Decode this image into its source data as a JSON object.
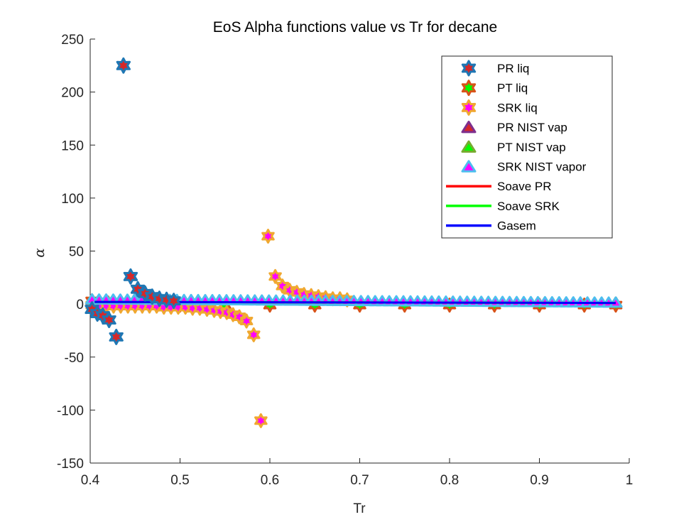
{
  "chart_data": {
    "type": "scatter",
    "title": "EoS Alpha functions value vs Tr for decane",
    "xlabel": "Tr",
    "ylabel": "α",
    "xlim": [
      0.4,
      1.0
    ],
    "ylim": [
      -150,
      250
    ],
    "xticks": [
      "0.4",
      "0.5",
      "0.6",
      "0.7",
      "0.8",
      "0.9",
      "1"
    ],
    "yticks": [
      "-150",
      "-100",
      "-50",
      "0",
      "50",
      "100",
      "150",
      "200",
      "250"
    ],
    "grid": false,
    "legend_position": "top-right",
    "series": [
      {
        "name": "PR liq",
        "marker": "hexagram",
        "edge_color": "#1f77b4",
        "face_color": "#d62728",
        "points": [
          [
            0.402,
            -5
          ],
          [
            0.408,
            -9
          ],
          [
            0.414,
            -11
          ],
          [
            0.421,
            -15
          ],
          [
            0.429,
            -31
          ],
          [
            0.437,
            225
          ],
          [
            0.445,
            26
          ],
          [
            0.453,
            14
          ],
          [
            0.461,
            10
          ],
          [
            0.469,
            7
          ],
          [
            0.477,
            5
          ],
          [
            0.485,
            4
          ],
          [
            0.493,
            3
          ]
        ]
      },
      {
        "name": "PT liq",
        "marker": "hexagram",
        "edge_color": "#d95319",
        "face_color": "#00ff00",
        "points": [
          [
            0.402,
            3
          ],
          [
            0.41,
            2
          ],
          [
            0.42,
            1
          ],
          [
            0.45,
            0
          ],
          [
            0.5,
            -1
          ],
          [
            0.55,
            -1
          ],
          [
            0.6,
            -1
          ],
          [
            0.65,
            -1
          ],
          [
            0.7,
            -1
          ],
          [
            0.75,
            -1
          ],
          [
            0.8,
            -1
          ],
          [
            0.85,
            -1
          ],
          [
            0.9,
            -1
          ],
          [
            0.95,
            -1
          ],
          [
            0.985,
            -1
          ]
        ]
      },
      {
        "name": "SRK liq",
        "marker": "hexagram",
        "edge_color": "#f0a830",
        "face_color": "#ff00ff",
        "points": [
          [
            0.402,
            -1
          ],
          [
            0.41,
            -2
          ],
          [
            0.418,
            -2
          ],
          [
            0.426,
            -2
          ],
          [
            0.434,
            -2
          ],
          [
            0.442,
            -2
          ],
          [
            0.45,
            -2
          ],
          [
            0.458,
            -2
          ],
          [
            0.466,
            -2
          ],
          [
            0.474,
            -2
          ],
          [
            0.482,
            -3
          ],
          [
            0.49,
            -3
          ],
          [
            0.498,
            -3
          ],
          [
            0.506,
            -3
          ],
          [
            0.514,
            -4
          ],
          [
            0.522,
            -4
          ],
          [
            0.53,
            -5
          ],
          [
            0.538,
            -6
          ],
          [
            0.545,
            -7
          ],
          [
            0.552,
            -8
          ],
          [
            0.559,
            -10
          ],
          [
            0.566,
            -12
          ],
          [
            0.574,
            -16
          ],
          [
            0.582,
            -29
          ],
          [
            0.59,
            -110
          ],
          [
            0.598,
            64
          ],
          [
            0.606,
            26
          ],
          [
            0.614,
            17
          ],
          [
            0.622,
            13
          ],
          [
            0.63,
            11
          ],
          [
            0.638,
            9
          ],
          [
            0.646,
            8
          ],
          [
            0.654,
            7
          ],
          [
            0.662,
            6
          ],
          [
            0.67,
            5
          ],
          [
            0.678,
            5
          ],
          [
            0.686,
            4
          ]
        ]
      },
      {
        "name": "PR NIST vap",
        "marker": "triangle",
        "edge_color": "#7e2f8e",
        "face_color": "#d62728",
        "points": [
          [
            0.402,
            4
          ],
          [
            0.985,
            1
          ]
        ]
      },
      {
        "name": "PT NIST vap",
        "marker": "triangle",
        "edge_color": "#77ac30",
        "face_color": "#00ff00",
        "points": [
          [
            0.402,
            4
          ],
          [
            0.985,
            1
          ]
        ]
      },
      {
        "name": "SRK NIST vapor",
        "marker": "triangle",
        "edge_color": "#4dbeee",
        "face_color": "#ff00ff",
        "points_x_range": [
          0.402,
          0.985
        ],
        "points_count": 75,
        "values_start": 4,
        "values_end": 1
      },
      {
        "name": "Soave PR",
        "line_color": "#ff0000",
        "x": [
          0.405,
          0.985
        ],
        "values": [
          2,
          1
        ]
      },
      {
        "name": "Soave SRK",
        "line_color": "#00ff00",
        "x": [
          0.405,
          0.985
        ],
        "values": [
          2,
          1
        ]
      },
      {
        "name": "Gasem",
        "line_color": "#0000ff",
        "x": [
          0.405,
          0.985
        ],
        "values": [
          2,
          1
        ]
      }
    ]
  }
}
